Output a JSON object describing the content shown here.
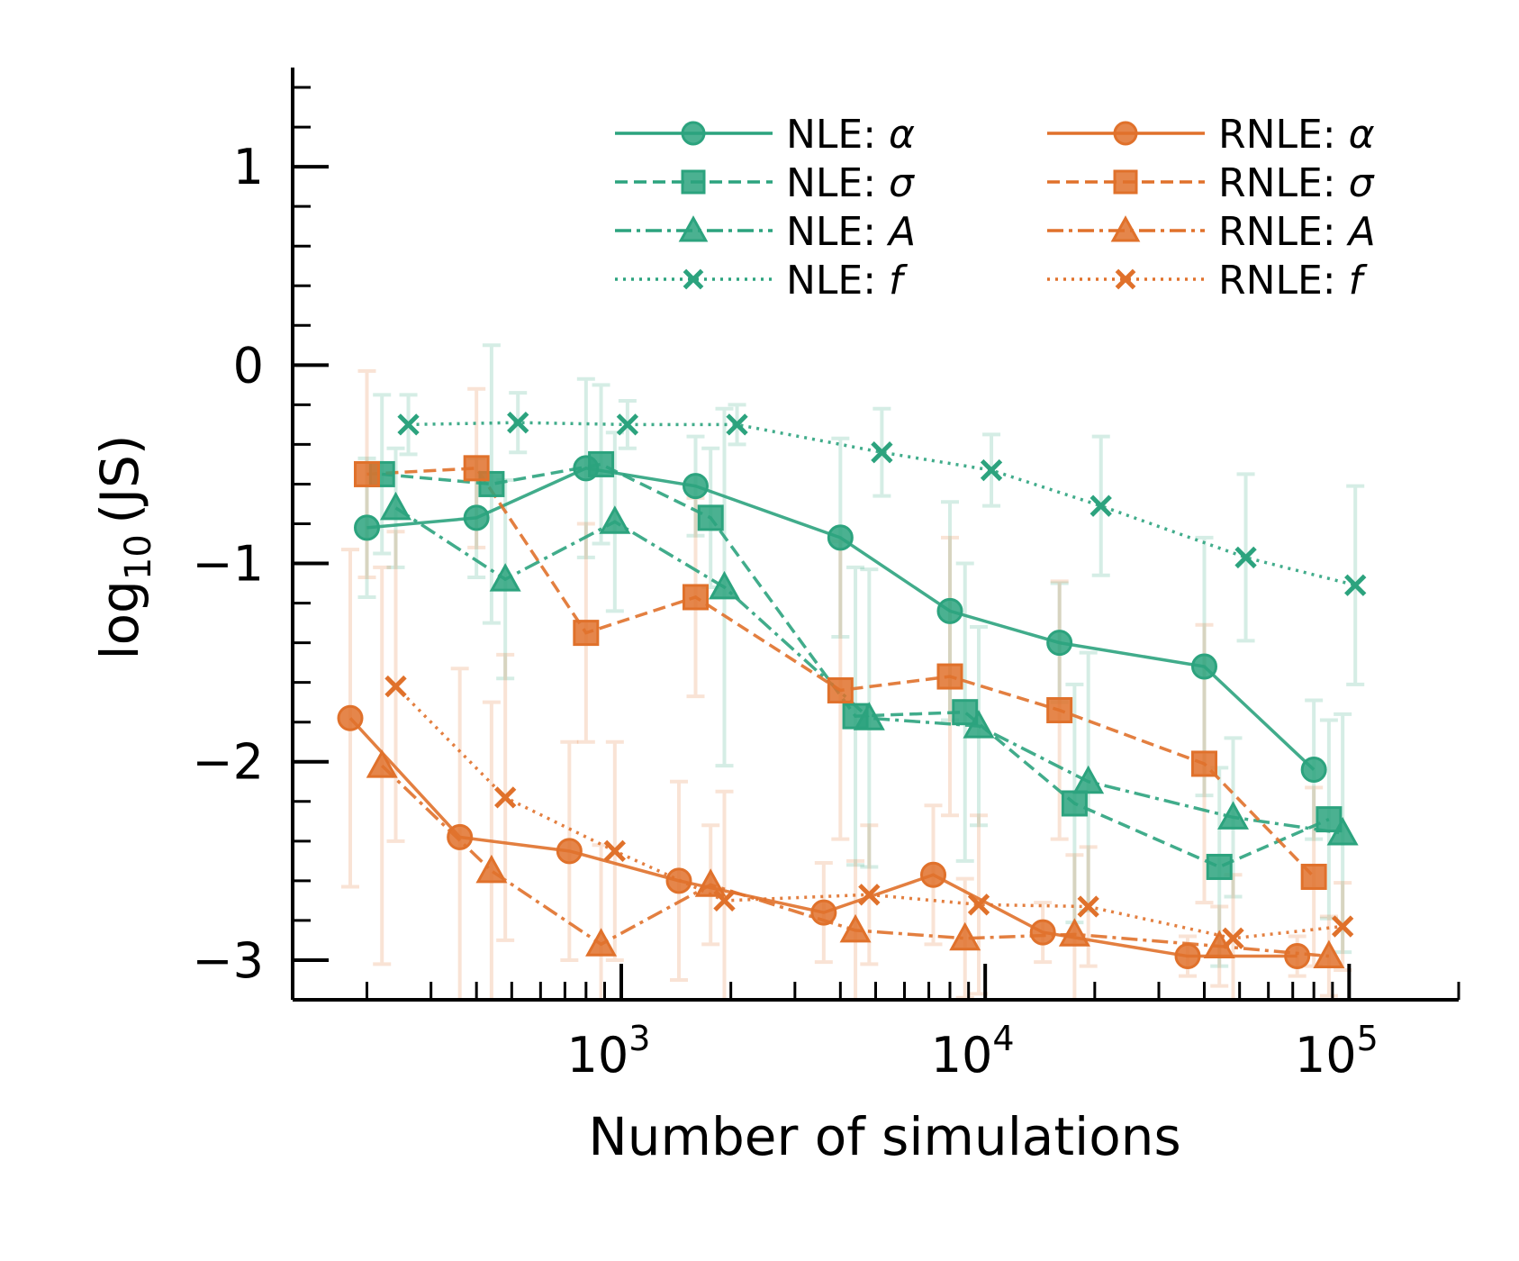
{
  "chart_data": {
    "type": "line",
    "title": "",
    "xlabel": "Number of simulations",
    "ylabel": "log10 (JS)",
    "xscale": "log",
    "xlim": [
      125,
      200000
    ],
    "ylim": [
      -3.2,
      1.5
    ],
    "yticks": [
      {
        "value": 1,
        "label": "1"
      },
      {
        "value": 0,
        "label": "0"
      },
      {
        "value": -1,
        "label": "−1"
      },
      {
        "value": -2,
        "label": "−2"
      },
      {
        "value": -3,
        "label": "−3"
      }
    ],
    "xticks": [
      {
        "value": 1000,
        "base": "10",
        "exp": "3"
      },
      {
        "value": 10000,
        "base": "10",
        "exp": "4"
      },
      {
        "value": 100000,
        "base": "10",
        "exp": "5"
      }
    ],
    "legend": {
      "placement": "top-right",
      "columns": 2
    },
    "series": [
      {
        "name": "NLE: α",
        "label": "NLE: ",
        "param": "α",
        "color": "#2ca37e",
        "linestyle": "solid",
        "marker": "circle",
        "x": [
          200,
          400,
          800,
          1600,
          4000,
          8000,
          16000,
          40000,
          80000
        ],
        "y": [
          -0.82,
          -0.77,
          -0.52,
          -0.61,
          -0.87,
          -1.24,
          -1.4,
          -1.52,
          -2.04
        ],
        "err": [
          0.35,
          0.3,
          0.45,
          0.25,
          0.5,
          0.55,
          0.3,
          0.65,
          0.35
        ]
      },
      {
        "name": "NLE: σ",
        "label": "NLE: ",
        "param": "σ",
        "color": "#2ca37e",
        "linestyle": "dashed",
        "marker": "square",
        "x": [
          220,
          440,
          880,
          1760,
          4400,
          8800,
          17600,
          44000,
          88000
        ],
        "y": [
          -0.55,
          -0.6,
          -0.5,
          -0.77,
          -1.77,
          -1.75,
          -2.21,
          -2.53,
          -2.29
        ],
        "err": [
          0.4,
          0.7,
          0.4,
          0.35,
          0.75,
          0.75,
          0.6,
          0.5,
          0.5
        ]
      },
      {
        "name": "NLE: A",
        "label": "NLE: ",
        "param": "A",
        "color": "#2ca37e",
        "linestyle": "dashdot",
        "marker": "triangle",
        "x": [
          240,
          480,
          960,
          1920,
          4800,
          9600,
          19200,
          48000,
          96000
        ],
        "y": [
          -0.72,
          -1.08,
          -0.79,
          -1.12,
          -1.78,
          -1.82,
          -2.1,
          -2.28,
          -2.36
        ],
        "err": [
          0.3,
          0.5,
          0.45,
          0.9,
          0.75,
          0.5,
          0.65,
          0.4,
          0.6
        ]
      },
      {
        "name": "NLE: f",
        "label": "NLE: ",
        "param": "f",
        "color": "#2ca37e",
        "linestyle": "dotted",
        "marker": "x",
        "x": [
          260,
          520,
          1040,
          2080,
          5200,
          10400,
          20800,
          52000,
          104000
        ],
        "y": [
          -0.3,
          -0.29,
          -0.3,
          -0.3,
          -0.44,
          -0.53,
          -0.71,
          -0.97,
          -1.11
        ],
        "err": [
          0.15,
          0.15,
          0.12,
          0.1,
          0.22,
          0.18,
          0.35,
          0.42,
          0.5
        ]
      },
      {
        "name": "RNLE: α",
        "label": "RNLE: ",
        "param": "α",
        "color": "#e0712b",
        "linestyle": "solid",
        "marker": "circle",
        "x": [
          180,
          360,
          720,
          1440,
          3600,
          7200,
          14400,
          36000,
          72000
        ],
        "y": [
          -1.78,
          -2.38,
          -2.45,
          -2.6,
          -2.76,
          -2.57,
          -2.86,
          -2.98,
          -2.98
        ],
        "err": [
          0.85,
          0.85,
          0.55,
          0.5,
          0.25,
          0.35,
          0.15,
          0.1,
          0.1
        ]
      },
      {
        "name": "RNLE: σ",
        "label": "RNLE: ",
        "param": "σ",
        "color": "#e0712b",
        "linestyle": "dashed",
        "marker": "square",
        "x": [
          200,
          400,
          800,
          1600,
          4000,
          8000,
          16000,
          40000,
          80000
        ],
        "y": [
          -0.55,
          -0.52,
          -1.35,
          -1.17,
          -1.64,
          -1.57,
          -1.74,
          -2.01,
          -2.58
        ],
        "err": [
          0.52,
          0.4,
          0.55,
          0.5,
          0.75,
          0.7,
          0.65,
          0.7,
          0.45
        ]
      },
      {
        "name": "RNLE: A",
        "label": "RNLE: ",
        "param": "A",
        "color": "#e0712b",
        "linestyle": "dashdot",
        "marker": "triangle",
        "x": [
          220,
          440,
          880,
          1760,
          4400,
          8800,
          17600,
          44000,
          88000
        ],
        "y": [
          -2.02,
          -2.55,
          -2.92,
          -2.62,
          -2.85,
          -2.89,
          -2.87,
          -2.93,
          -2.98
        ],
        "err": [
          1.0,
          0.85,
          0.5,
          0.3,
          0.35,
          0.3,
          0.4,
          0.2,
          0.2
        ]
      },
      {
        "name": "RNLE: f",
        "label": "RNLE: ",
        "param": "f",
        "color": "#e0712b",
        "linestyle": "dotted",
        "marker": "x",
        "x": [
          240,
          480,
          960,
          1920,
          4800,
          9600,
          19200,
          48000,
          96000
        ],
        "y": [
          -1.62,
          -2.18,
          -2.45,
          -2.7,
          -2.67,
          -2.72,
          -2.73,
          -2.89,
          -2.83
        ],
        "err": [
          0.78,
          0.72,
          0.55,
          0.55,
          0.35,
          0.45,
          0.3,
          0.32,
          0.22
        ]
      }
    ]
  }
}
